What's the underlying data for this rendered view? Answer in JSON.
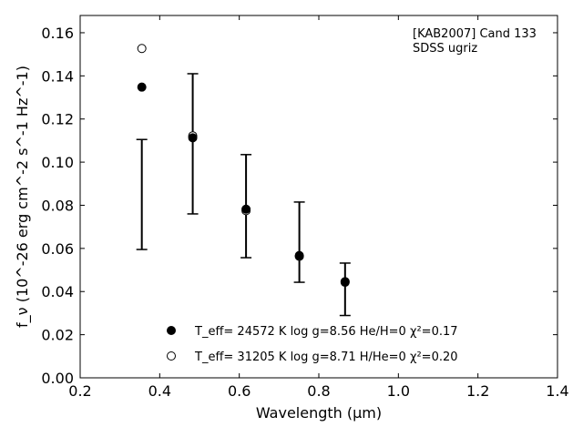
{
  "chart_data": {
    "type": "scatter",
    "title": "",
    "xlabel": "Wavelength (μm)",
    "ylabel": "f_ν (10^-26 erg cm^-2 s^-1 Hz^-1)",
    "xlim": [
      0.2,
      1.4
    ],
    "ylim": [
      0.0,
      0.168
    ],
    "x_ticks": [
      0.2,
      0.4,
      0.6,
      0.8,
      1.0,
      1.2,
      1.4
    ],
    "y_ticks": [
      0.0,
      0.02,
      0.04,
      0.06,
      0.08,
      0.1,
      0.12,
      0.14,
      0.16
    ],
    "x_tick_labels": [
      "0.2",
      "0.4",
      "0.6",
      "0.8",
      "1.0",
      "1.2",
      "1.4"
    ],
    "y_tick_labels": [
      "0.00",
      "0.02",
      "0.04",
      "0.06",
      "0.08",
      "0.10",
      "0.12",
      "0.14",
      "0.16"
    ],
    "grid": false,
    "annotation": [
      "[KAB2007] Cand 133",
      "SDSS ugriz"
    ],
    "observed": {
      "x": [
        0.355,
        0.483,
        0.617,
        0.751,
        0.866
      ],
      "y_low": [
        0.0595,
        0.076,
        0.0557,
        0.0443,
        0.0289
      ],
      "y_high": [
        0.1105,
        0.141,
        0.1035,
        0.0815,
        0.0532
      ]
    },
    "series": [
      {
        "name": "T_eff= 24572 K  log g=8.56  He/H=0  χ²=0.17",
        "marker": "filled-circle",
        "x": [
          0.355,
          0.483,
          0.617,
          0.751,
          0.866
        ],
        "y": [
          0.1348,
          0.1113,
          0.0782,
          0.0567,
          0.0446
        ]
      },
      {
        "name": "T_eff= 31205 K  log g=8.71  H/He=0  χ²=0.20",
        "marker": "open-circle",
        "x": [
          0.355,
          0.483,
          0.617,
          0.751,
          0.866
        ],
        "y": [
          0.1527,
          0.1122,
          0.0775,
          0.0563,
          0.0443
        ]
      }
    ],
    "legend_position": "lower-center",
    "colors": {
      "marker": "#000000",
      "errorbar": "#000000"
    }
  }
}
